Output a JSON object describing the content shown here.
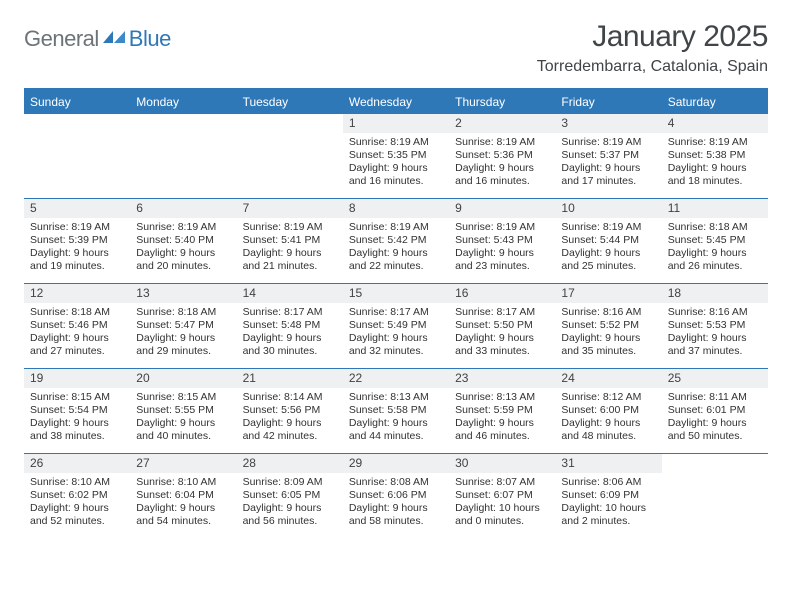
{
  "logo": {
    "general": "General",
    "blue": "Blue"
  },
  "title": "January 2025",
  "location": "Torredembarra, Catalonia, Spain",
  "header_color": "#2f78b8",
  "daynum_bg": "#eef0f1",
  "text_color": "#323232",
  "weekdays": [
    "Sunday",
    "Monday",
    "Tuesday",
    "Wednesday",
    "Thursday",
    "Friday",
    "Saturday"
  ],
  "weeks": [
    [
      null,
      null,
      null,
      {
        "n": "1",
        "sr": "Sunrise: 8:19 AM",
        "ss": "Sunset: 5:35 PM",
        "d1": "Daylight: 9 hours",
        "d2": "and 16 minutes."
      },
      {
        "n": "2",
        "sr": "Sunrise: 8:19 AM",
        "ss": "Sunset: 5:36 PM",
        "d1": "Daylight: 9 hours",
        "d2": "and 16 minutes."
      },
      {
        "n": "3",
        "sr": "Sunrise: 8:19 AM",
        "ss": "Sunset: 5:37 PM",
        "d1": "Daylight: 9 hours",
        "d2": "and 17 minutes."
      },
      {
        "n": "4",
        "sr": "Sunrise: 8:19 AM",
        "ss": "Sunset: 5:38 PM",
        "d1": "Daylight: 9 hours",
        "d2": "and 18 minutes."
      }
    ],
    [
      {
        "n": "5",
        "sr": "Sunrise: 8:19 AM",
        "ss": "Sunset: 5:39 PM",
        "d1": "Daylight: 9 hours",
        "d2": "and 19 minutes."
      },
      {
        "n": "6",
        "sr": "Sunrise: 8:19 AM",
        "ss": "Sunset: 5:40 PM",
        "d1": "Daylight: 9 hours",
        "d2": "and 20 minutes."
      },
      {
        "n": "7",
        "sr": "Sunrise: 8:19 AM",
        "ss": "Sunset: 5:41 PM",
        "d1": "Daylight: 9 hours",
        "d2": "and 21 minutes."
      },
      {
        "n": "8",
        "sr": "Sunrise: 8:19 AM",
        "ss": "Sunset: 5:42 PM",
        "d1": "Daylight: 9 hours",
        "d2": "and 22 minutes."
      },
      {
        "n": "9",
        "sr": "Sunrise: 8:19 AM",
        "ss": "Sunset: 5:43 PM",
        "d1": "Daylight: 9 hours",
        "d2": "and 23 minutes."
      },
      {
        "n": "10",
        "sr": "Sunrise: 8:19 AM",
        "ss": "Sunset: 5:44 PM",
        "d1": "Daylight: 9 hours",
        "d2": "and 25 minutes."
      },
      {
        "n": "11",
        "sr": "Sunrise: 8:18 AM",
        "ss": "Sunset: 5:45 PM",
        "d1": "Daylight: 9 hours",
        "d2": "and 26 minutes."
      }
    ],
    [
      {
        "n": "12",
        "sr": "Sunrise: 8:18 AM",
        "ss": "Sunset: 5:46 PM",
        "d1": "Daylight: 9 hours",
        "d2": "and 27 minutes."
      },
      {
        "n": "13",
        "sr": "Sunrise: 8:18 AM",
        "ss": "Sunset: 5:47 PM",
        "d1": "Daylight: 9 hours",
        "d2": "and 29 minutes."
      },
      {
        "n": "14",
        "sr": "Sunrise: 8:17 AM",
        "ss": "Sunset: 5:48 PM",
        "d1": "Daylight: 9 hours",
        "d2": "and 30 minutes."
      },
      {
        "n": "15",
        "sr": "Sunrise: 8:17 AM",
        "ss": "Sunset: 5:49 PM",
        "d1": "Daylight: 9 hours",
        "d2": "and 32 minutes."
      },
      {
        "n": "16",
        "sr": "Sunrise: 8:17 AM",
        "ss": "Sunset: 5:50 PM",
        "d1": "Daylight: 9 hours",
        "d2": "and 33 minutes."
      },
      {
        "n": "17",
        "sr": "Sunrise: 8:16 AM",
        "ss": "Sunset: 5:52 PM",
        "d1": "Daylight: 9 hours",
        "d2": "and 35 minutes."
      },
      {
        "n": "18",
        "sr": "Sunrise: 8:16 AM",
        "ss": "Sunset: 5:53 PM",
        "d1": "Daylight: 9 hours",
        "d2": "and 37 minutes."
      }
    ],
    [
      {
        "n": "19",
        "sr": "Sunrise: 8:15 AM",
        "ss": "Sunset: 5:54 PM",
        "d1": "Daylight: 9 hours",
        "d2": "and 38 minutes."
      },
      {
        "n": "20",
        "sr": "Sunrise: 8:15 AM",
        "ss": "Sunset: 5:55 PM",
        "d1": "Daylight: 9 hours",
        "d2": "and 40 minutes."
      },
      {
        "n": "21",
        "sr": "Sunrise: 8:14 AM",
        "ss": "Sunset: 5:56 PM",
        "d1": "Daylight: 9 hours",
        "d2": "and 42 minutes."
      },
      {
        "n": "22",
        "sr": "Sunrise: 8:13 AM",
        "ss": "Sunset: 5:58 PM",
        "d1": "Daylight: 9 hours",
        "d2": "and 44 minutes."
      },
      {
        "n": "23",
        "sr": "Sunrise: 8:13 AM",
        "ss": "Sunset: 5:59 PM",
        "d1": "Daylight: 9 hours",
        "d2": "and 46 minutes."
      },
      {
        "n": "24",
        "sr": "Sunrise: 8:12 AM",
        "ss": "Sunset: 6:00 PM",
        "d1": "Daylight: 9 hours",
        "d2": "and 48 minutes."
      },
      {
        "n": "25",
        "sr": "Sunrise: 8:11 AM",
        "ss": "Sunset: 6:01 PM",
        "d1": "Daylight: 9 hours",
        "d2": "and 50 minutes."
      }
    ],
    [
      {
        "n": "26",
        "sr": "Sunrise: 8:10 AM",
        "ss": "Sunset: 6:02 PM",
        "d1": "Daylight: 9 hours",
        "d2": "and 52 minutes."
      },
      {
        "n": "27",
        "sr": "Sunrise: 8:10 AM",
        "ss": "Sunset: 6:04 PM",
        "d1": "Daylight: 9 hours",
        "d2": "and 54 minutes."
      },
      {
        "n": "28",
        "sr": "Sunrise: 8:09 AM",
        "ss": "Sunset: 6:05 PM",
        "d1": "Daylight: 9 hours",
        "d2": "and 56 minutes."
      },
      {
        "n": "29",
        "sr": "Sunrise: 8:08 AM",
        "ss": "Sunset: 6:06 PM",
        "d1": "Daylight: 9 hours",
        "d2": "and 58 minutes."
      },
      {
        "n": "30",
        "sr": "Sunrise: 8:07 AM",
        "ss": "Sunset: 6:07 PM",
        "d1": "Daylight: 10 hours",
        "d2": "and 0 minutes."
      },
      {
        "n": "31",
        "sr": "Sunrise: 8:06 AM",
        "ss": "Sunset: 6:09 PM",
        "d1": "Daylight: 10 hours",
        "d2": "and 2 minutes."
      },
      null
    ]
  ]
}
